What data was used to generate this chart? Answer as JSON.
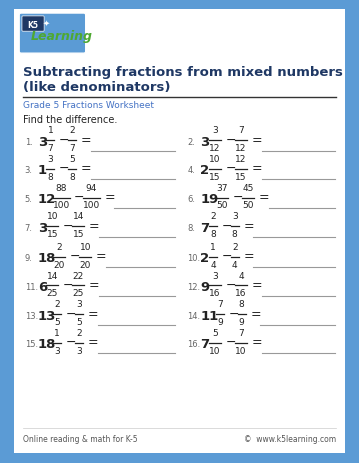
{
  "title_line1": "Subtracting fractions from mixed numbers",
  "title_line2": "(like denominators)",
  "subtitle": "Grade 5 Fractions Worksheet",
  "instruction": "Find the difference.",
  "bg_color": "#5b9bd5",
  "inner_bg": "#ffffff",
  "title_color": "#1f3864",
  "subtitle_color": "#4472c4",
  "text_color": "#222222",
  "num_color": "#666666",
  "line_color": "#999999",
  "problems": [
    {
      "num": 1,
      "whole": "3",
      "n1": "1",
      "d1": "7",
      "n2": "2",
      "d2": "7"
    },
    {
      "num": 2,
      "whole": "3",
      "n1": "3",
      "d1": "12",
      "n2": "7",
      "d2": "12"
    },
    {
      "num": 3,
      "whole": "1",
      "n1": "3",
      "d1": "8",
      "n2": "5",
      "d2": "8"
    },
    {
      "num": 4,
      "whole": "2",
      "n1": "10",
      "d1": "15",
      "n2": "12",
      "d2": "15"
    },
    {
      "num": 5,
      "whole": "12",
      "n1": "88",
      "d1": "100",
      "n2": "94",
      "d2": "100"
    },
    {
      "num": 6,
      "whole": "19",
      "n1": "37",
      "d1": "50",
      "n2": "45",
      "d2": "50"
    },
    {
      "num": 7,
      "whole": "3",
      "n1": "10",
      "d1": "15",
      "n2": "14",
      "d2": "15"
    },
    {
      "num": 8,
      "whole": "7",
      "n1": "2",
      "d1": "8",
      "n2": "3",
      "d2": "8"
    },
    {
      "num": 9,
      "whole": "18",
      "n1": "2",
      "d1": "20",
      "n2": "10",
      "d2": "20"
    },
    {
      "num": 10,
      "whole": "2",
      "n1": "1",
      "d1": "4",
      "n2": "2",
      "d2": "4"
    },
    {
      "num": 11,
      "whole": "6",
      "n1": "14",
      "d1": "25",
      "n2": "22",
      "d2": "25"
    },
    {
      "num": 12,
      "whole": "9",
      "n1": "3",
      "d1": "16",
      "n2": "4",
      "d2": "16"
    },
    {
      "num": 13,
      "whole": "13",
      "n1": "2",
      "d1": "5",
      "n2": "3",
      "d2": "5"
    },
    {
      "num": 14,
      "whole": "11",
      "n1": "7",
      "d1": "9",
      "n2": "8",
      "d2": "9"
    },
    {
      "num": 15,
      "whole": "18",
      "n1": "1",
      "d1": "3",
      "n2": "2",
      "d2": "3"
    },
    {
      "num": 16,
      "whole": "7",
      "n1": "5",
      "d1": "10",
      "n2": "7",
      "d2": "10"
    }
  ],
  "footer_left": "Online reading & math for K-5",
  "footer_right": "©  www.k5learning.com"
}
